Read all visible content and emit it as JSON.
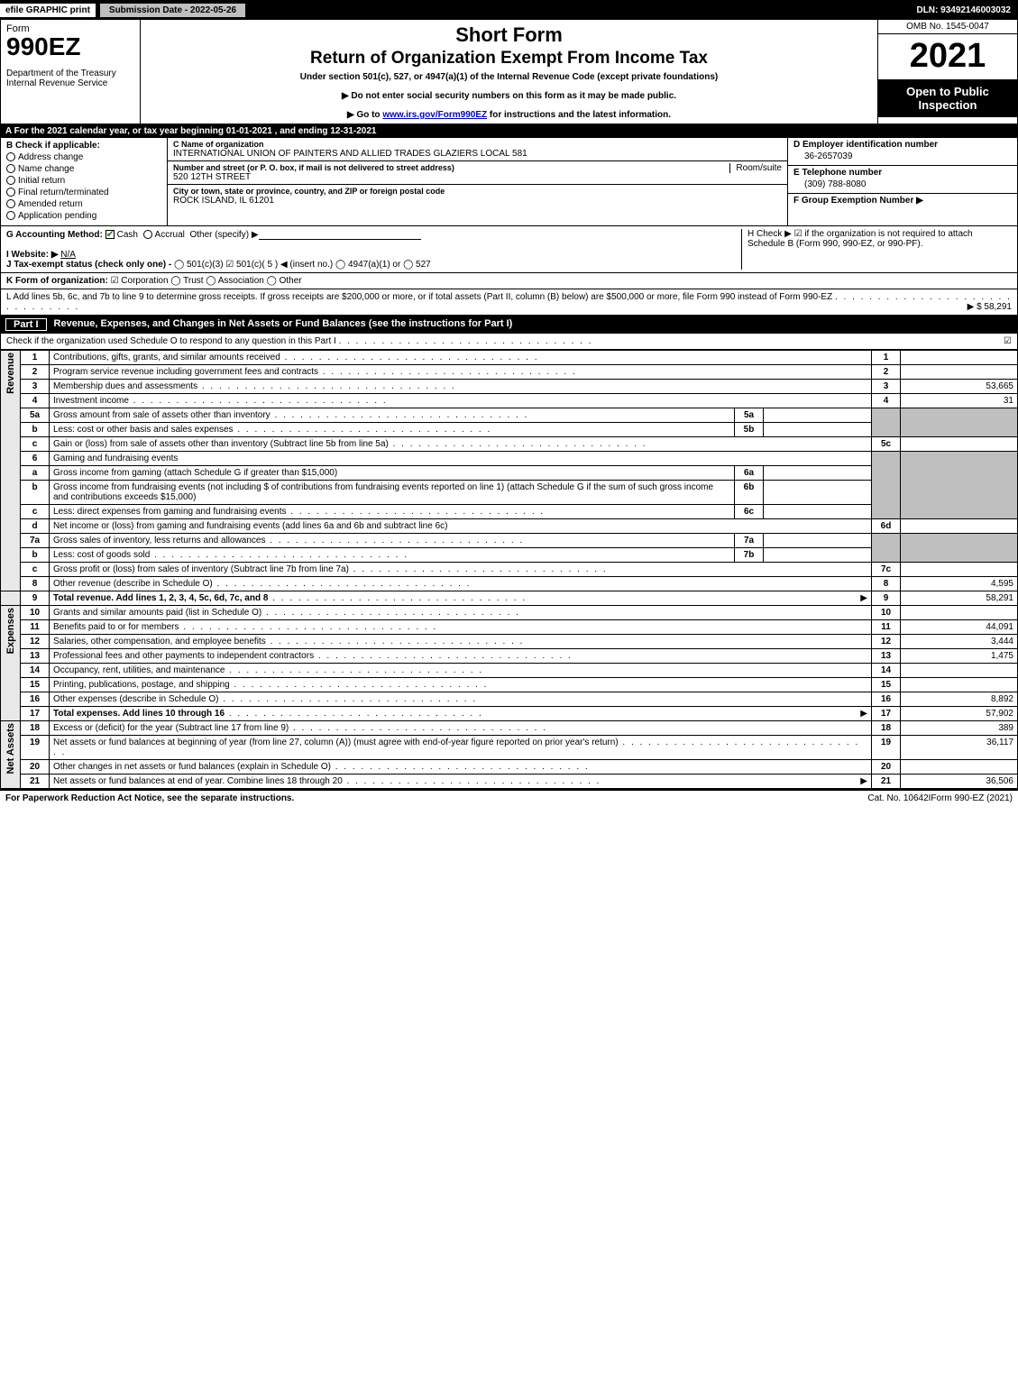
{
  "topbar": {
    "efile": "efile GRAPHIC print",
    "submit": "Submission Date - 2022-05-26",
    "dln": "DLN: 93492146003032"
  },
  "header": {
    "form_word": "Form",
    "form_num": "990EZ",
    "dept": "Department of the Treasury\nInternal Revenue Service",
    "title_main": "Short Form",
    "title_sub": "Return of Organization Exempt From Income Tax",
    "sub1": "Under section 501(c), 527, or 4947(a)(1) of the Internal Revenue Code (except private foundations)",
    "sub2": "▶ Do not enter social security numbers on this form as it may be made public.",
    "sub3_prefix": "▶ Go to ",
    "sub3_link": "www.irs.gov/Form990EZ",
    "sub3_suffix": " for instructions and the latest information.",
    "omb": "OMB No. 1545-0047",
    "year": "2021",
    "open": "Open to Public Inspection"
  },
  "rowA": "A  For the 2021 calendar year, or tax year beginning 01-01-2021 , and ending 12-31-2021",
  "boxB": {
    "label": "B  Check if applicable:",
    "items": [
      "Address change",
      "Name change",
      "Initial return",
      "Final return/terminated",
      "Amended return",
      "Application pending"
    ]
  },
  "boxC": {
    "name_label": "C Name of organization",
    "name": "INTERNATIONAL UNION OF PAINTERS AND ALLIED TRADES GLAZIERS LOCAL 581",
    "street_label": "Number and street (or P. O. box, if mail is not delivered to street address)",
    "room_label": "Room/suite",
    "street": "520 12TH STREET",
    "city_label": "City or town, state or province, country, and ZIP or foreign postal code",
    "city": "ROCK ISLAND, IL  61201"
  },
  "boxD": {
    "label": "D Employer identification number",
    "value": "36-2657039",
    "e_label": "E Telephone number",
    "e_value": "(309) 788-8080",
    "f_label": "F Group Exemption Number   ▶"
  },
  "rowG": {
    "label": "G Accounting Method:",
    "cash": "Cash",
    "accrual": "Accrual",
    "other": "Other (specify) ▶"
  },
  "rowH": {
    "text": "H  Check ▶ ☑ if the organization is not required to attach Schedule B (Form 990, 990-EZ, or 990-PF)."
  },
  "rowI": {
    "label": "I Website: ▶",
    "value": "N/A"
  },
  "rowJ": {
    "label": "J Tax-exempt status (check only one) -",
    "opts": "◯ 501(c)(3)  ☑ 501(c)( 5 ) ◀ (insert no.)  ◯ 4947(a)(1) or  ◯ 527"
  },
  "rowK": {
    "label": "K Form of organization:",
    "opts": "☑ Corporation   ◯ Trust   ◯ Association   ◯ Other"
  },
  "rowL": {
    "text": "L Add lines 5b, 6c, and 7b to line 9 to determine gross receipts. If gross receipts are $200,000 or more, or if total assets (Part II, column (B) below) are $500,000 or more, file Form 990 instead of Form 990-EZ",
    "arrow": "▶ $",
    "amount": "58,291"
  },
  "part1": {
    "label": "Part I",
    "title": "Revenue, Expenses, and Changes in Net Assets or Fund Balances (see the instructions for Part I)",
    "check_line": "Check if the organization used Schedule O to respond to any question in this Part I",
    "checked": "☑"
  },
  "side_labels": {
    "revenue": "Revenue",
    "expenses": "Expenses",
    "netassets": "Net Assets"
  },
  "lines": {
    "l1": {
      "n": "1",
      "d": "Contributions, gifts, grants, and similar amounts received",
      "ln": "1",
      "amt": ""
    },
    "l2": {
      "n": "2",
      "d": "Program service revenue including government fees and contracts",
      "ln": "2",
      "amt": ""
    },
    "l3": {
      "n": "3",
      "d": "Membership dues and assessments",
      "ln": "3",
      "amt": "53,665"
    },
    "l4": {
      "n": "4",
      "d": "Investment income",
      "ln": "4",
      "amt": "31"
    },
    "l5a": {
      "n": "5a",
      "d": "Gross amount from sale of assets other than inventory",
      "sn": "5a"
    },
    "l5b": {
      "n": "b",
      "d": "Less: cost or other basis and sales expenses",
      "sn": "5b"
    },
    "l5c": {
      "n": "c",
      "d": "Gain or (loss) from sale of assets other than inventory (Subtract line 5b from line 5a)",
      "ln": "5c",
      "amt": ""
    },
    "l6": {
      "n": "6",
      "d": "Gaming and fundraising events"
    },
    "l6a": {
      "n": "a",
      "d": "Gross income from gaming (attach Schedule G if greater than $15,000)",
      "sn": "6a"
    },
    "l6b": {
      "n": "b",
      "d": "Gross income from fundraising events (not including $                       of contributions from fundraising events reported on line 1) (attach Schedule G if the sum of such gross income and contributions exceeds $15,000)",
      "sn": "6b"
    },
    "l6c": {
      "n": "c",
      "d": "Less: direct expenses from gaming and fundraising events",
      "sn": "6c"
    },
    "l6d": {
      "n": "d",
      "d": "Net income or (loss) from gaming and fundraising events (add lines 6a and 6b and subtract line 6c)",
      "ln": "6d",
      "amt": ""
    },
    "l7a": {
      "n": "7a",
      "d": "Gross sales of inventory, less returns and allowances",
      "sn": "7a"
    },
    "l7b": {
      "n": "b",
      "d": "Less: cost of goods sold",
      "sn": "7b"
    },
    "l7c": {
      "n": "c",
      "d": "Gross profit or (loss) from sales of inventory (Subtract line 7b from line 7a)",
      "ln": "7c",
      "amt": ""
    },
    "l8": {
      "n": "8",
      "d": "Other revenue (describe in Schedule O)",
      "ln": "8",
      "amt": "4,595"
    },
    "l9": {
      "n": "9",
      "d": "Total revenue. Add lines 1, 2, 3, 4, 5c, 6d, 7c, and 8",
      "ln": "9",
      "amt": "58,291",
      "arrow": "▶"
    },
    "l10": {
      "n": "10",
      "d": "Grants and similar amounts paid (list in Schedule O)",
      "ln": "10",
      "amt": ""
    },
    "l11": {
      "n": "11",
      "d": "Benefits paid to or for members",
      "ln": "11",
      "amt": "44,091"
    },
    "l12": {
      "n": "12",
      "d": "Salaries, other compensation, and employee benefits",
      "ln": "12",
      "amt": "3,444"
    },
    "l13": {
      "n": "13",
      "d": "Professional fees and other payments to independent contractors",
      "ln": "13",
      "amt": "1,475"
    },
    "l14": {
      "n": "14",
      "d": "Occupancy, rent, utilities, and maintenance",
      "ln": "14",
      "amt": ""
    },
    "l15": {
      "n": "15",
      "d": "Printing, publications, postage, and shipping",
      "ln": "15",
      "amt": ""
    },
    "l16": {
      "n": "16",
      "d": "Other expenses (describe in Schedule O)",
      "ln": "16",
      "amt": "8,892"
    },
    "l17": {
      "n": "17",
      "d": "Total expenses. Add lines 10 through 16",
      "ln": "17",
      "amt": "57,902",
      "arrow": "▶"
    },
    "l18": {
      "n": "18",
      "d": "Excess or (deficit) for the year (Subtract line 17 from line 9)",
      "ln": "18",
      "amt": "389"
    },
    "l19": {
      "n": "19",
      "d": "Net assets or fund balances at beginning of year (from line 27, column (A)) (must agree with end-of-year figure reported on prior year's return)",
      "ln": "19",
      "amt": "36,117"
    },
    "l20": {
      "n": "20",
      "d": "Other changes in net assets or fund balances (explain in Schedule O)",
      "ln": "20",
      "amt": ""
    },
    "l21": {
      "n": "21",
      "d": "Net assets or fund balances at end of year. Combine lines 18 through 20",
      "ln": "21",
      "amt": "36,506",
      "arrow": "▶"
    }
  },
  "footer": {
    "left": "For Paperwork Reduction Act Notice, see the separate instructions.",
    "mid": "Cat. No. 10642I",
    "right": "Form 990-EZ (2021)"
  },
  "colors": {
    "black": "#000000",
    "white": "#ffffff",
    "grey": "#bfbfbf",
    "link": "#0000cc",
    "check": "#2a7a2a"
  }
}
